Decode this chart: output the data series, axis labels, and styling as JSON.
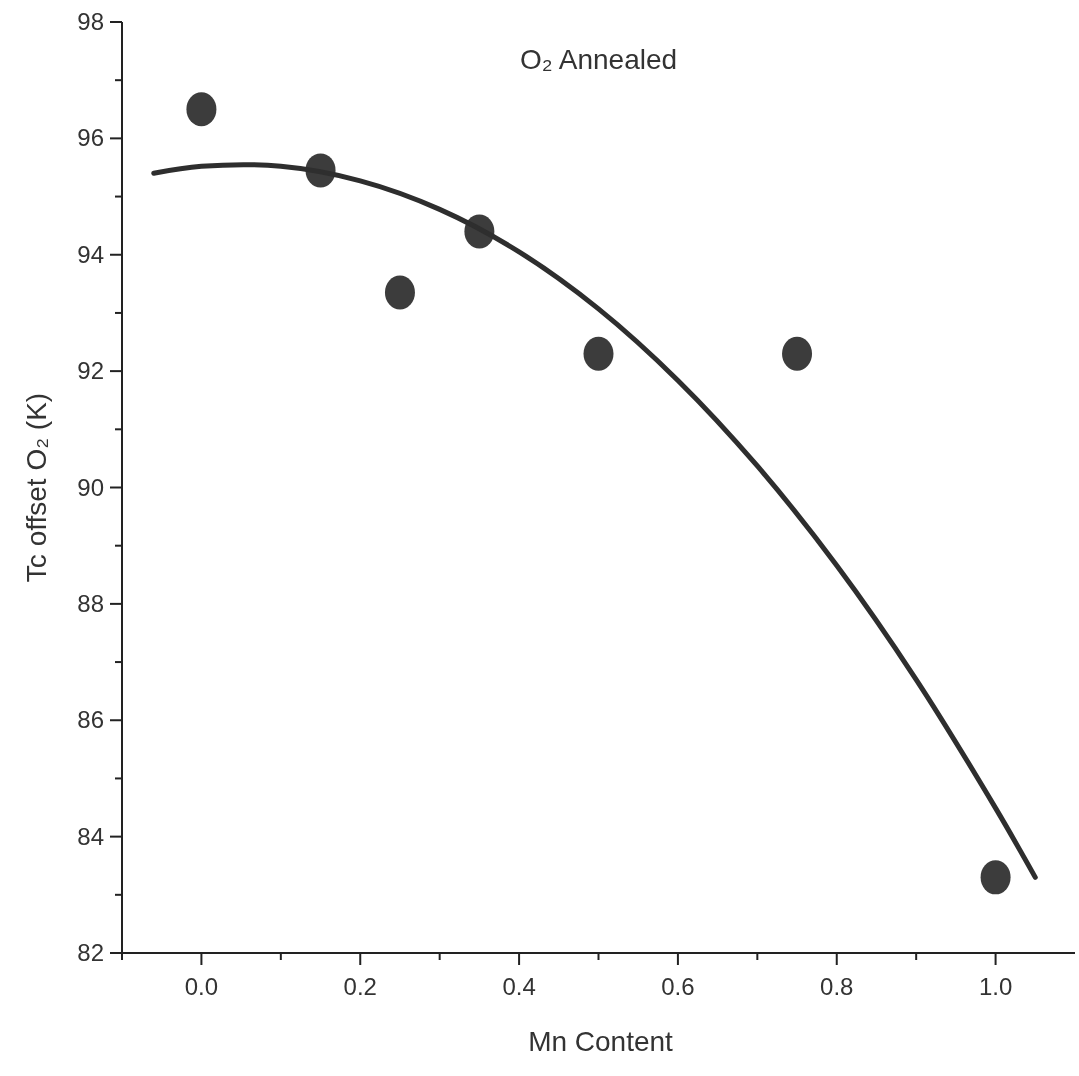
{
  "chart_data": {
    "type": "scatter",
    "xlabel": "Mn Content",
    "ylabel": "Tc offset O₂ (K)",
    "annotations": [
      "O₂ Annealed"
    ],
    "xlim": [
      -0.1,
      1.1
    ],
    "ylim": [
      82,
      98
    ],
    "xticks": [
      {
        "value": -0.1,
        "label": null
      },
      {
        "value": 0,
        "label": "0.0"
      },
      {
        "value": 0.1,
        "label": null
      },
      {
        "value": 0.2,
        "label": "0.2"
      },
      {
        "value": 0.3,
        "label": null
      },
      {
        "value": 0.4,
        "label": "0.4"
      },
      {
        "value": 0.5,
        "label": null
      },
      {
        "value": 0.6,
        "label": "0.6"
      },
      {
        "value": 0.7,
        "label": null
      },
      {
        "value": 0.8,
        "label": "0.8"
      },
      {
        "value": 0.9,
        "label": null
      },
      {
        "value": 1,
        "label": "1.0"
      }
    ],
    "yticks": [
      82,
      {
        "value": 83,
        "label": null
      },
      84,
      {
        "value": 85,
        "label": null
      },
      86,
      {
        "value": 87,
        "label": null
      },
      88,
      {
        "value": 89,
        "label": null
      },
      90,
      {
        "value": 91,
        "label": null
      },
      92,
      {
        "value": 93,
        "label": null
      },
      94,
      {
        "value": 95,
        "label": null
      },
      96,
      {
        "value": 97,
        "label": null
      },
      98
    ],
    "grid": false,
    "series": [
      {
        "color": "#3c3c3c",
        "marker": "circle",
        "x": [
          0,
          0.15,
          0.25,
          0.35,
          0.5,
          0.75,
          1.0
        ],
        "values": [
          96.5,
          95.45,
          93.35,
          94.4,
          92.3,
          92.3,
          83.3
        ]
      },
      {
        "type": "line",
        "color": "#2e2e2e",
        "marker": "none",
        "line_style": "solid",
        "x": [
          -0.06,
          0,
          0.1,
          0.2,
          0.3,
          0.4,
          0.5,
          0.6,
          0.7,
          0.8,
          0.9,
          1.0,
          1.05
        ],
        "values": [
          95.4,
          95.52,
          95.52,
          95.27,
          94.78,
          94.05,
          93.07,
          91.84,
          90.37,
          88.66,
          86.7,
          84.49,
          83.3
        ]
      }
    ]
  }
}
